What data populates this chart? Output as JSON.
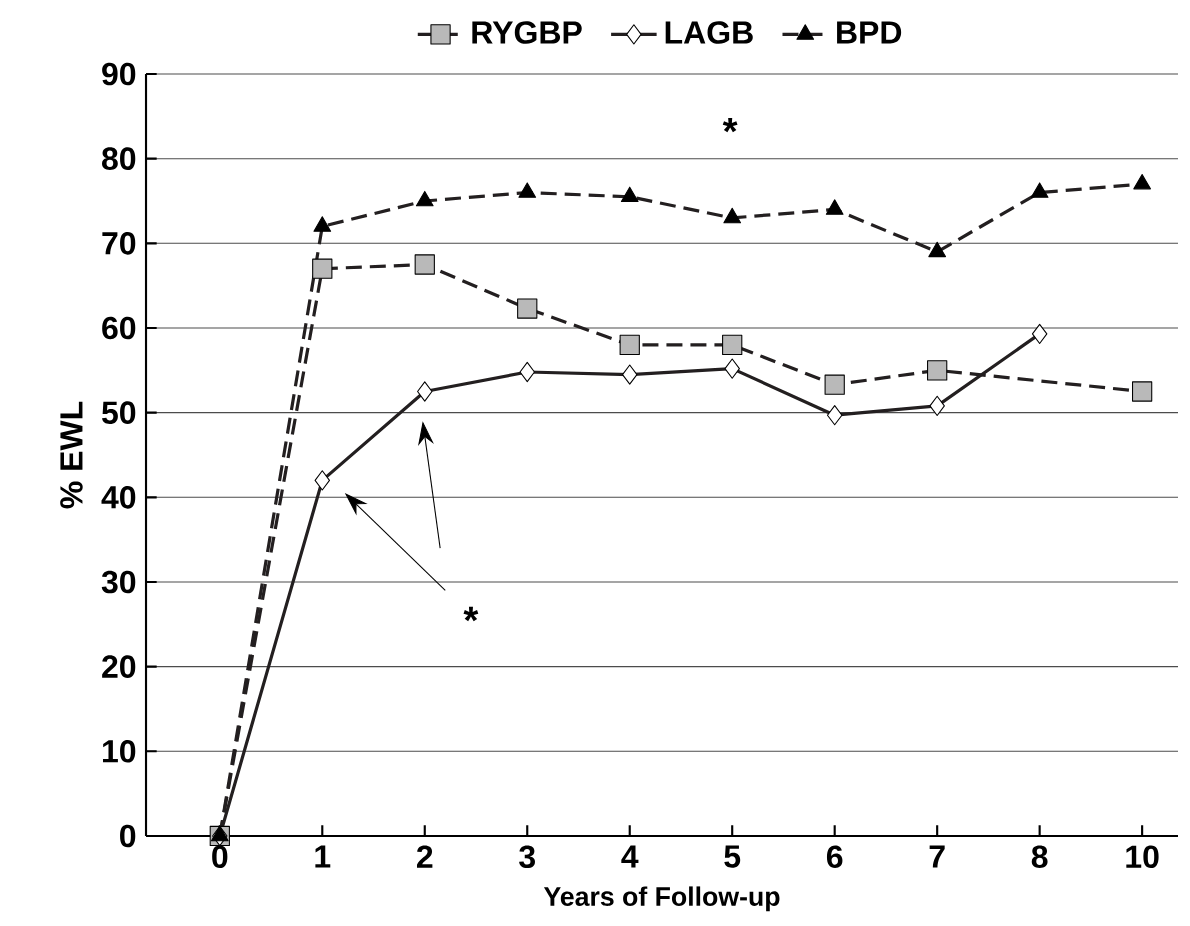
{
  "chart_data": {
    "type": "line",
    "xlabel": "Years of Follow-up",
    "ylabel": "% EWL",
    "categories": [
      "0",
      "1",
      "2",
      "3",
      "4",
      "5",
      "6",
      "7",
      "8",
      "10"
    ],
    "series": [
      {
        "name": "RYGBP",
        "color": "#231f20",
        "marker": "square",
        "line_style": "dashed",
        "values": [
          0,
          67,
          67.5,
          62.3,
          58,
          58,
          53.3,
          55,
          null,
          52.5
        ]
      },
      {
        "name": "LAGB",
        "color": "#231f20",
        "marker": "diamond",
        "line_style": "solid",
        "values": [
          0,
          42,
          52.5,
          54.8,
          54.5,
          55.2,
          49.7,
          50.8,
          59.3,
          null
        ]
      },
      {
        "name": "BPD",
        "color": "#231f20",
        "marker": "triangle",
        "line_style": "dashed",
        "values": [
          0,
          72,
          75,
          76,
          75.5,
          73,
          74,
          69,
          76,
          77
        ]
      }
    ],
    "ylim": [
      0,
      90
    ],
    "yticks": [
      0,
      10,
      20,
      30,
      40,
      50,
      60,
      70,
      80,
      90
    ],
    "grid": "y",
    "legend": "top",
    "annotations": [
      "*",
      "*"
    ]
  }
}
